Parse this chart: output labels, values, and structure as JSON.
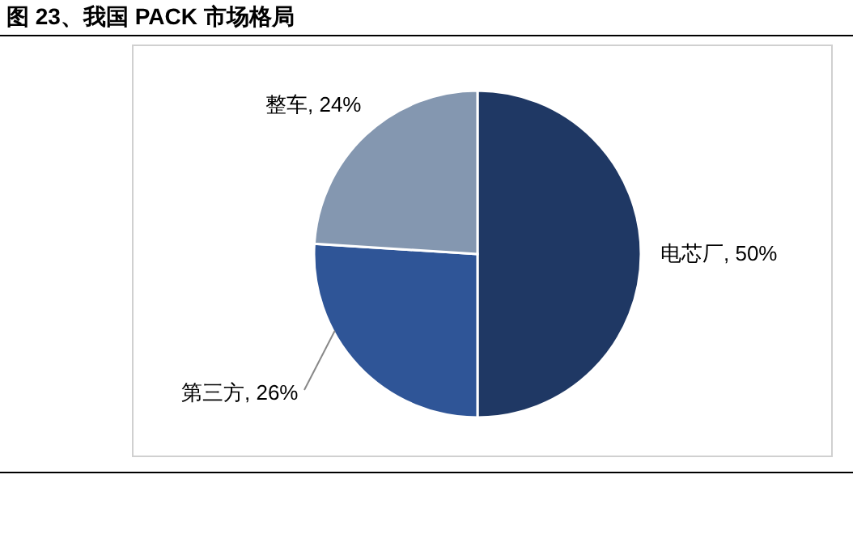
{
  "chart_data": {
    "type": "pie",
    "title": "图 23、我国 PACK 市场格局",
    "categories": [
      "电芯厂",
      "第三方",
      "整车"
    ],
    "values": [
      50,
      26,
      24
    ],
    "value_labels": [
      "50%",
      "26%",
      "24%"
    ],
    "colors": [
      "#1f3864",
      "#2f5597",
      "#8497b0"
    ]
  }
}
